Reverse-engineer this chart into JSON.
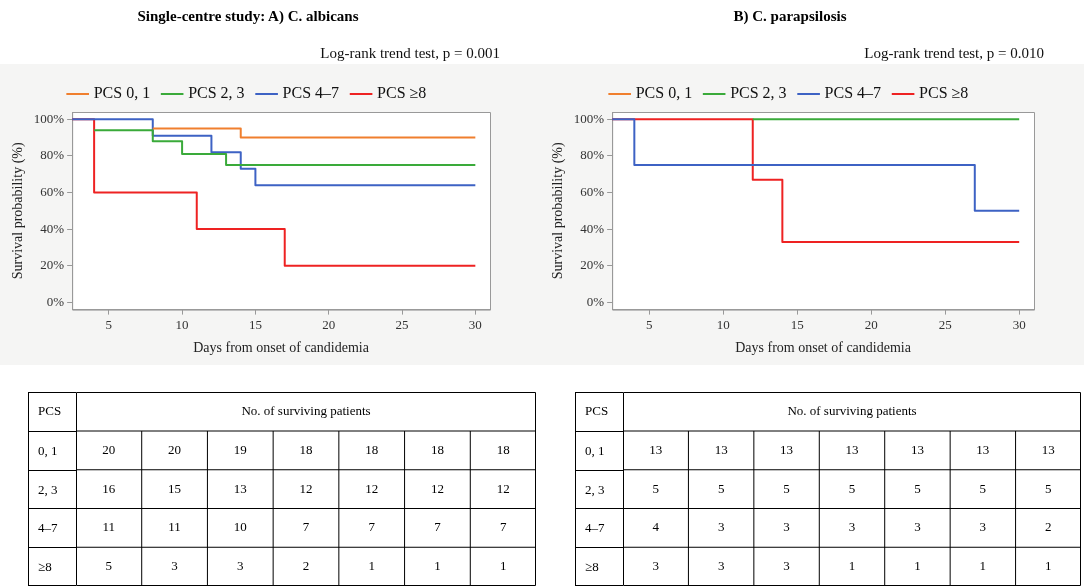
{
  "chart_data": [
    {
      "type": "step",
      "title": "Single-centre study: A) C. albicans",
      "annotations": [
        "Log-rank trend test, p = 0.001"
      ],
      "xlabel": "Days from onset of candidemia",
      "ylabel": "Survival probability (%)",
      "xlim": [
        2.5,
        31
      ],
      "xticks": [
        5,
        10,
        15,
        20,
        25,
        30
      ],
      "ylim": [
        -4,
        104
      ],
      "yticks": [
        {
          "value": 0,
          "label": "0%"
        },
        {
          "value": 20,
          "label": "20%"
        },
        {
          "value": 40,
          "label": "40%"
        },
        {
          "value": 60,
          "label": "60%"
        },
        {
          "value": 80,
          "label": "80%"
        },
        {
          "value": 100,
          "label": "100%"
        }
      ],
      "legend": "top",
      "grid": false,
      "marker": "none",
      "line_style": "solid",
      "series": [
        {
          "name": "PCS 0, 1",
          "color": "#f07f2e",
          "x": [
            8,
            14,
            30
          ],
          "values": [
            95,
            90,
            90
          ]
        },
        {
          "name": "PCS 2, 3",
          "color": "#3aaa3a",
          "x": [
            4,
            8,
            10,
            13,
            30
          ],
          "values": [
            94,
            88,
            81,
            75,
            75
          ]
        },
        {
          "name": "PCS 4–7",
          "color": "#3d62c4",
          "x": [
            2.5,
            8,
            12,
            14,
            15,
            30
          ],
          "values": [
            100,
            91,
            82,
            73,
            64,
            64
          ]
        },
        {
          "name": "PCS ≥8",
          "color": "#ee2222",
          "x": [
            2.5,
            4,
            11,
            17,
            30
          ],
          "values": [
            100,
            60,
            40,
            20,
            20
          ]
        }
      ]
    },
    {
      "type": "step",
      "title": "B) C. parapsilosis",
      "annotations": [
        "Log-rank trend test, p = 0.010"
      ],
      "xlabel": "Days from onset of candidemia",
      "ylabel": "Survival probability (%)",
      "xlim": [
        2.5,
        31
      ],
      "xticks": [
        5,
        10,
        15,
        20,
        25,
        30
      ],
      "ylim": [
        -4,
        104
      ],
      "yticks": [
        {
          "value": 0,
          "label": "0%"
        },
        {
          "value": 20,
          "label": "20%"
        },
        {
          "value": 40,
          "label": "40%"
        },
        {
          "value": 60,
          "label": "60%"
        },
        {
          "value": 80,
          "label": "80%"
        },
        {
          "value": 100,
          "label": "100%"
        }
      ],
      "legend": "top",
      "grid": false,
      "marker": "none",
      "line_style": "solid",
      "series": [
        {
          "name": "PCS 0, 1",
          "color": "#f07f2e"
        },
        {
          "name": "PCS 2, 3",
          "color": "#3aaa3a",
          "x": [
            12,
            30
          ],
          "values": [
            100,
            100
          ]
        },
        {
          "name": "PCS 4–7",
          "color": "#3d62c4",
          "x": [
            2.5,
            4,
            27,
            30
          ],
          "values": [
            100,
            75,
            50,
            50
          ]
        },
        {
          "name": "PCS ≥8",
          "color": "#ee2222",
          "x": [
            2.5,
            12,
            14,
            30
          ],
          "values": [
            100,
            67,
            33,
            33
          ]
        }
      ]
    },
    {
      "type": "heatmap",
      "title": "No. of surviving patients",
      "ylabel": "PCS",
      "data_labels": true,
      "categories": [
        null,
        null,
        null,
        null,
        null,
        null,
        null
      ],
      "y_categories": [
        "0, 1",
        "2, 3",
        "4–7",
        "≥8"
      ],
      "cells": [
        [
          20,
          20,
          19,
          18,
          18,
          18,
          18
        ],
        [
          16,
          15,
          13,
          12,
          12,
          12,
          12
        ],
        [
          11,
          11,
          10,
          7,
          7,
          7,
          7
        ],
        [
          5,
          3,
          3,
          2,
          1,
          1,
          1
        ]
      ]
    },
    {
      "type": "heatmap",
      "title": "No. of surviving patients",
      "ylabel": "PCS",
      "data_labels": true,
      "categories": [
        null,
        null,
        null,
        null,
        null,
        null,
        null
      ],
      "y_categories": [
        "0, 1",
        "2, 3",
        "4–7",
        "≥8"
      ],
      "cells": [
        [
          13,
          13,
          13,
          13,
          13,
          13,
          13
        ],
        [
          5,
          5,
          5,
          5,
          5,
          5,
          5
        ],
        [
          4,
          3,
          3,
          3,
          3,
          3,
          2
        ],
        [
          3,
          3,
          3,
          1,
          1,
          1,
          1
        ]
      ]
    }
  ]
}
